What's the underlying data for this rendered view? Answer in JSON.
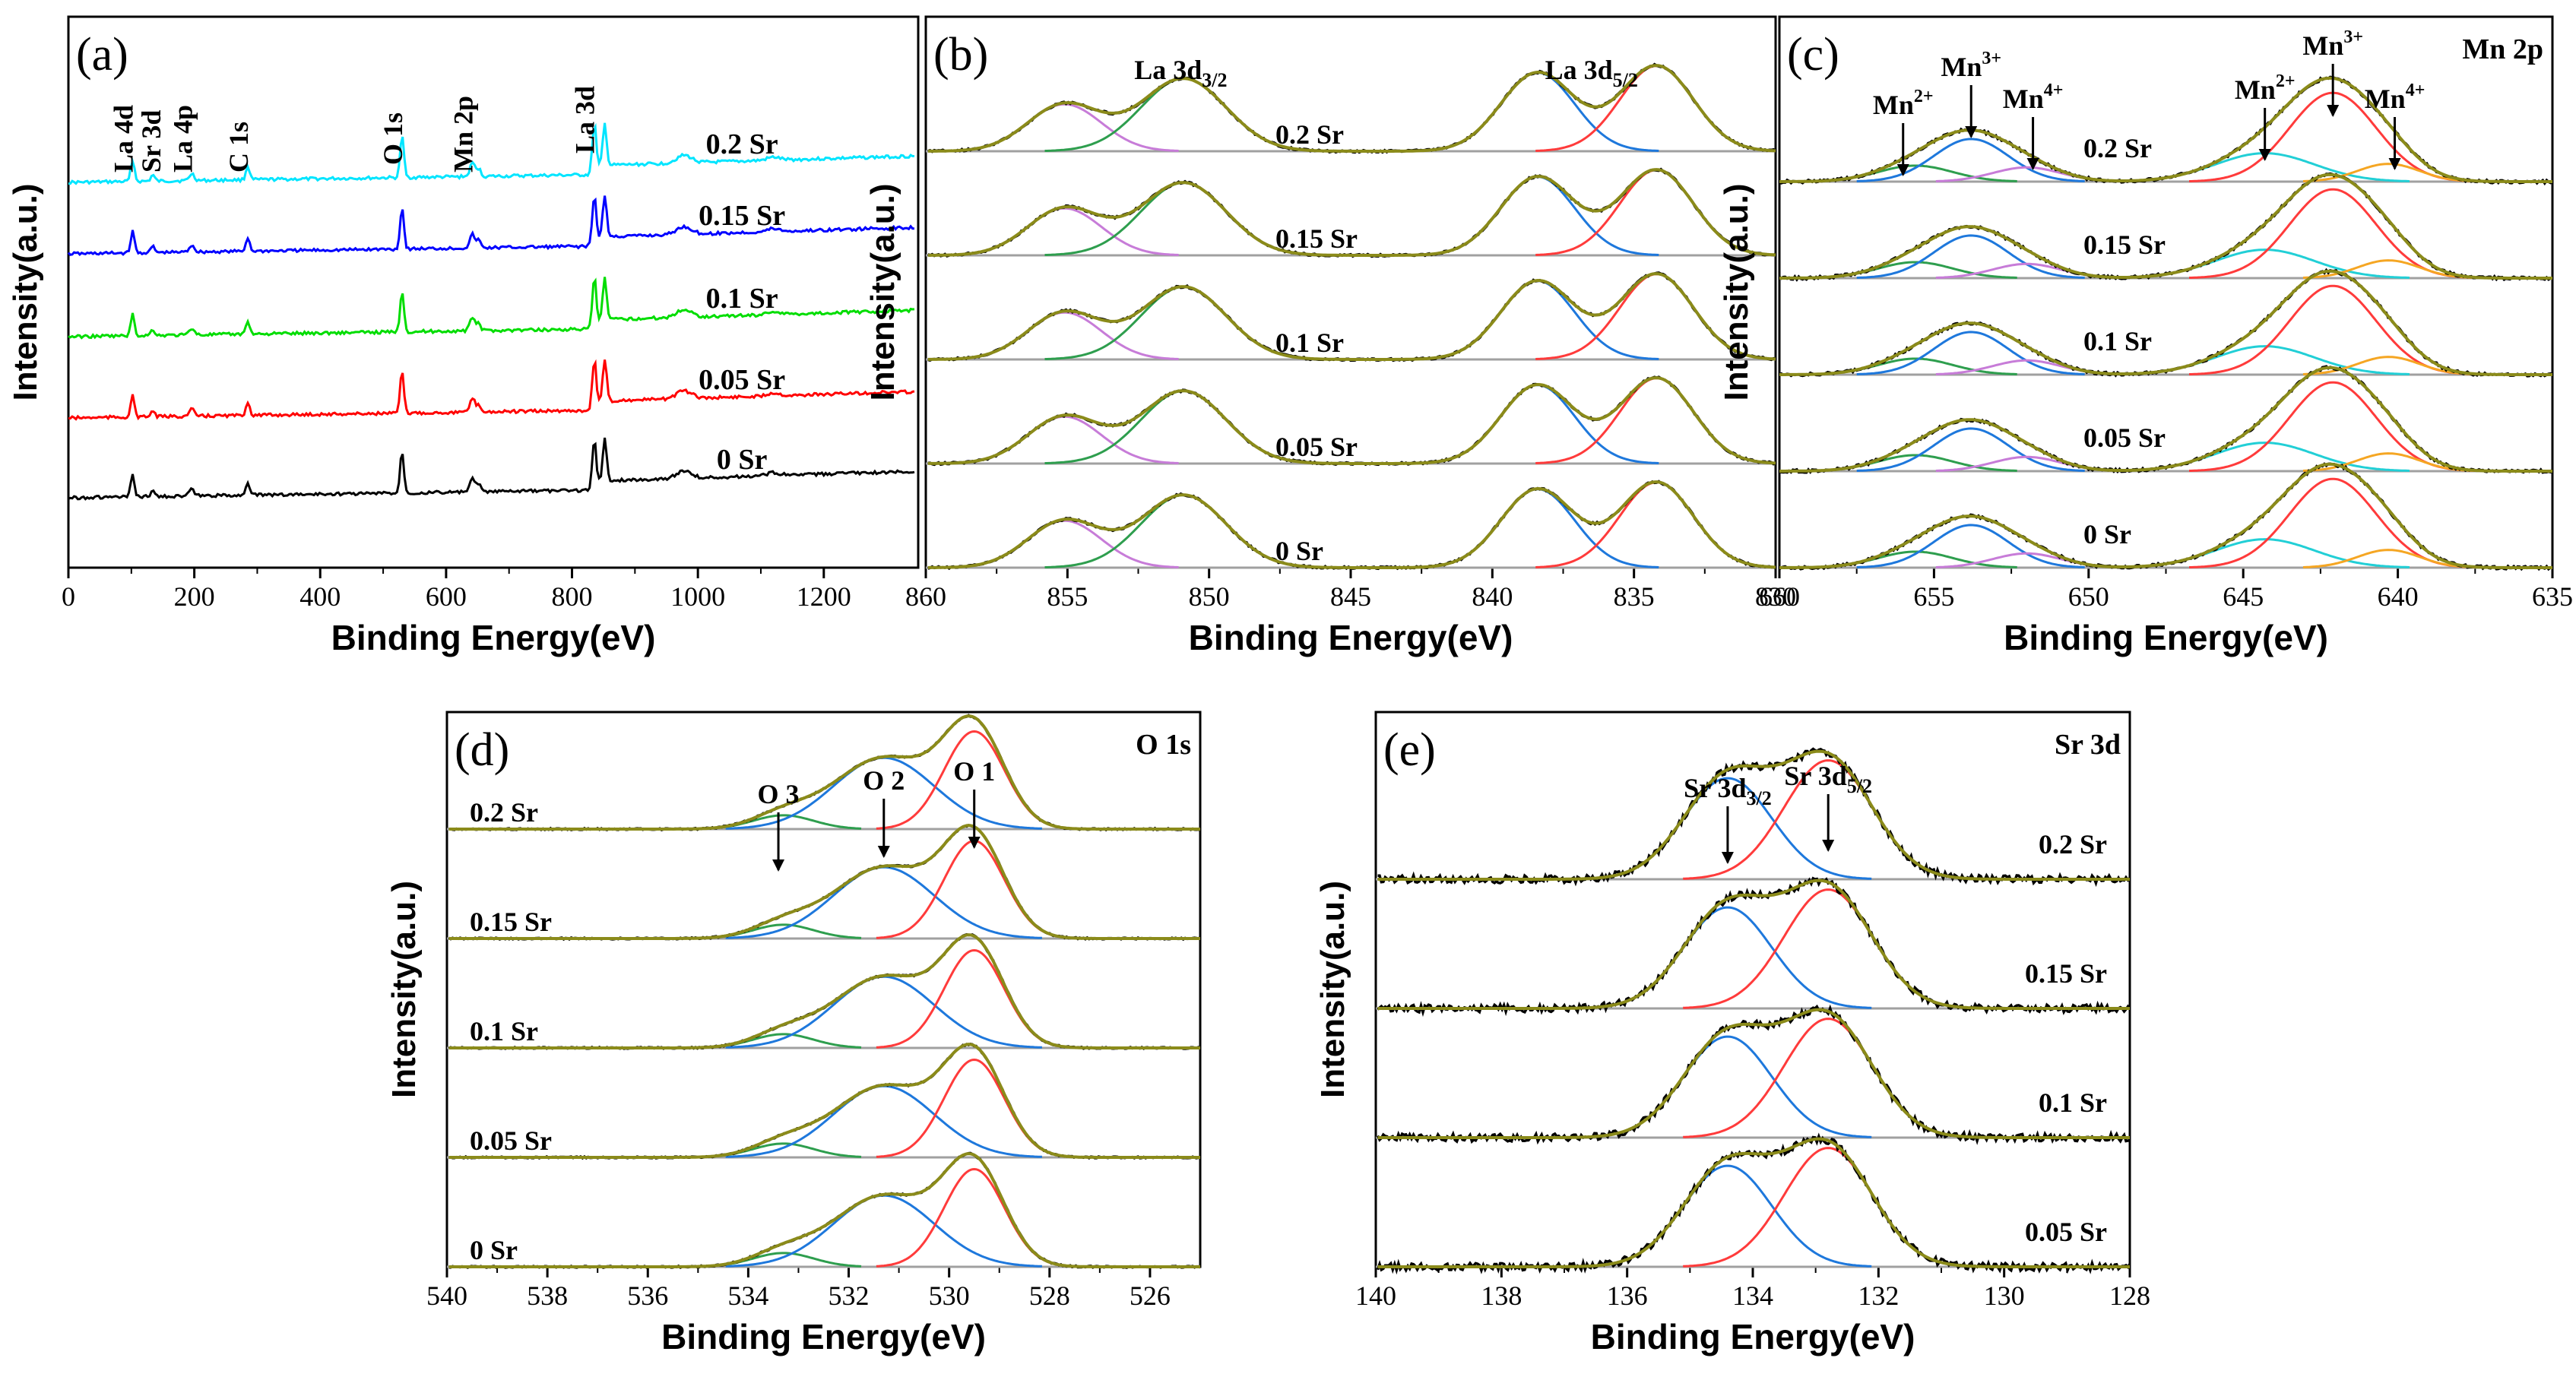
{
  "figure": {
    "colors": {
      "survey": [
        "#00e5ff",
        "#0000ff",
        "#00dd00",
        "#ff0000",
        "#000000"
      ],
      "raw": "#000000",
      "envelope": "#8b8b1a",
      "baseline": "#a0a0a0",
      "red": "#ff3b3b",
      "blue": "#1e78dc",
      "green": "#2e9e4e",
      "violet": "#c77cd8",
      "cyan": "#22cfd6",
      "orange": "#f5a623",
      "axis": "#000000"
    }
  },
  "chart_data": [
    {
      "id": "a",
      "type": "line",
      "panel_label": "(a)",
      "xlabel": "Binding Energy(eV)",
      "ylabel": "Intensity(a.u.)",
      "xlim": [
        0,
        1350
      ],
      "x_ticks": [
        0,
        200,
        400,
        600,
        800,
        1000,
        1200
      ],
      "tick_labels": [
        "0",
        "200",
        "400",
        "600",
        "800",
        "1000",
        "1200"
      ],
      "peak_labels": [
        "La 4d",
        "Sr 3d",
        "La 4p",
        "C 1s",
        "O 1s",
        "Mn 2p",
        "La 3d"
      ],
      "peak_positions": [
        102,
        134,
        196,
        285,
        530,
        642,
        835
      ],
      "series": [
        {
          "name": "0.2 Sr",
          "offset": 4
        },
        {
          "name": "0.15 Sr",
          "offset": 3
        },
        {
          "name": "0.1 Sr",
          "offset": 2
        },
        {
          "name": "0.05 Sr",
          "offset": 1
        },
        {
          "name": "0 Sr",
          "offset": 0
        }
      ]
    },
    {
      "id": "b",
      "type": "line",
      "panel_label": "(b)",
      "xlabel": "Binding Energy(eV)",
      "ylabel": "Intensity(a.u.)",
      "xlim": [
        860,
        830
      ],
      "x_ticks": [
        860,
        855,
        850,
        845,
        840,
        835,
        830
      ],
      "tick_labels": [
        "860",
        "855",
        "850",
        "845",
        "840",
        "835",
        "830"
      ],
      "annotations": [
        {
          "base": "La 3d",
          "sub": "3/2",
          "x": 851
        },
        {
          "base": "La 3d",
          "sub": "5/2",
          "x": 836.5
        }
      ],
      "peaks": [
        {
          "center": 855.1,
          "height": 0.55,
          "width": 1.3,
          "color": "violet"
        },
        {
          "center": 850.9,
          "height": 0.85,
          "width": 1.5,
          "color": "green"
        },
        {
          "center": 838.4,
          "height": 0.92,
          "width": 1.3,
          "color": "blue"
        },
        {
          "center": 834.2,
          "height": 1.0,
          "width": 1.3,
          "color": "red"
        }
      ],
      "series": [
        {
          "name": "0.2 Sr"
        },
        {
          "name": "0.15 Sr"
        },
        {
          "name": "0.1 Sr"
        },
        {
          "name": "0.05 Sr"
        },
        {
          "name": "0 Sr"
        }
      ]
    },
    {
      "id": "c",
      "type": "line",
      "panel_label": "(c)",
      "corner_label": "Mn 2p",
      "xlabel": "Binding Energy(eV)",
      "ylabel": "Intensity(a.u.)",
      "xlim": [
        660,
        635
      ],
      "x_ticks": [
        660,
        655,
        650,
        645,
        640,
        635
      ],
      "tick_labels": [
        "660",
        "655",
        "650",
        "645",
        "640",
        "635"
      ],
      "annotations": [
        {
          "base": "Mn",
          "sup": "2+",
          "x": 656.0
        },
        {
          "base": "Mn",
          "sup": "3+",
          "x": 653.8
        },
        {
          "base": "Mn",
          "sup": "4+",
          "x": 651.8
        },
        {
          "base": "Mn",
          "sup": "2+",
          "x": 644.3
        },
        {
          "base": "Mn",
          "sup": "3+",
          "x": 642.1
        },
        {
          "base": "Mn",
          "sup": "4+",
          "x": 640.1
        }
      ],
      "peaks": [
        {
          "center": 655.6,
          "height": 0.18,
          "width": 1.2,
          "color": "green"
        },
        {
          "center": 653.8,
          "height": 0.48,
          "width": 1.2,
          "color": "blue"
        },
        {
          "center": 652.0,
          "height": 0.16,
          "width": 1.1,
          "color": "violet"
        },
        {
          "center": 644.3,
          "height": 0.32,
          "width": 1.6,
          "color": "cyan"
        },
        {
          "center": 642.1,
          "height": 1.0,
          "width": 1.4,
          "color": "red"
        },
        {
          "center": 640.3,
          "height": 0.2,
          "width": 1.0,
          "color": "orange"
        }
      ],
      "series": [
        {
          "name": "0.2 Sr"
        },
        {
          "name": "0.15 Sr"
        },
        {
          "name": "0.1 Sr"
        },
        {
          "name": "0.05 Sr"
        },
        {
          "name": "0 Sr"
        }
      ]
    },
    {
      "id": "d",
      "type": "line",
      "panel_label": "(d)",
      "corner_label": "O 1s",
      "xlabel": "Binding Energy(eV)",
      "ylabel": "Intensity(a.u.)",
      "xlim": [
        540,
        525
      ],
      "x_ticks": [
        540,
        538,
        536,
        534,
        532,
        530,
        528,
        526
      ],
      "tick_labels": [
        "540",
        "538",
        "536",
        "534",
        "532",
        "530",
        "528",
        "526"
      ],
      "annotations": [
        {
          "base": "O 3",
          "x": 533.4
        },
        {
          "base": "O 2",
          "x": 531.3
        },
        {
          "base": "O 1",
          "x": 529.5
        }
      ],
      "peaks": [
        {
          "center": 533.3,
          "height": 0.12,
          "width": 0.6,
          "color": "green"
        },
        {
          "center": 531.3,
          "height": 0.62,
          "width": 1.0,
          "color": "blue"
        },
        {
          "center": 529.5,
          "height": 0.85,
          "width": 0.6,
          "color": "red"
        }
      ],
      "series": [
        {
          "name": "0.2 Sr"
        },
        {
          "name": "0.15 Sr"
        },
        {
          "name": "0.1 Sr"
        },
        {
          "name": "0.05 Sr"
        },
        {
          "name": "0 Sr"
        }
      ]
    },
    {
      "id": "e",
      "type": "line",
      "panel_label": "(e)",
      "corner_label": "Sr 3d",
      "xlabel": "Binding Energy(eV)",
      "ylabel": "Intensity(a.u.)",
      "xlim": [
        140,
        128
      ],
      "x_ticks": [
        140,
        138,
        136,
        134,
        132,
        130,
        128
      ],
      "tick_labels": [
        "140",
        "138",
        "136",
        "134",
        "132",
        "130",
        "128"
      ],
      "annotations": [
        {
          "base": "Sr 3d",
          "sub": "3/2",
          "x": 134.4
        },
        {
          "base": "Sr 3d",
          "sub": "5/2",
          "x": 132.8
        }
      ],
      "peaks": [
        {
          "center": 134.4,
          "height": 0.85,
          "width": 0.7,
          "color": "blue"
        },
        {
          "center": 132.8,
          "height": 1.0,
          "width": 0.7,
          "color": "red"
        }
      ],
      "series": [
        {
          "name": "0.2 Sr"
        },
        {
          "name": "0.15 Sr"
        },
        {
          "name": "0.1 Sr"
        },
        {
          "name": "0.05 Sr"
        }
      ]
    }
  ]
}
